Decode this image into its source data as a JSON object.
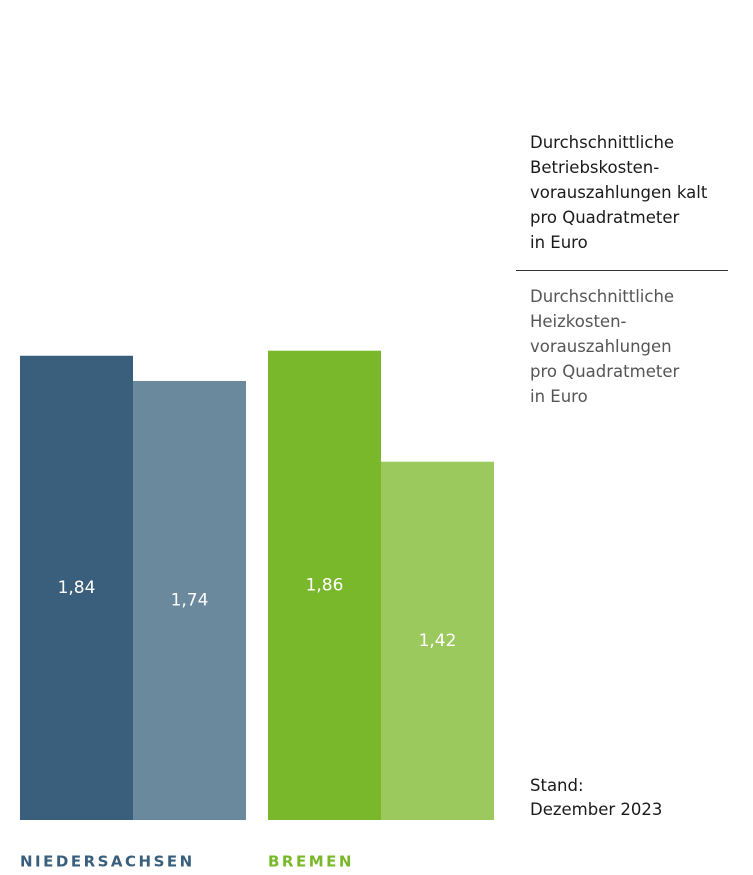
{
  "chart_data": {
    "type": "bar",
    "categories": [
      "NIEDERSACHSEN",
      "BREMEN"
    ],
    "series": [
      {
        "name": "Durchschnittliche\nBetriebskosten-\nvorauszahlungen kalt\npro Quadratmeter\nin Euro",
        "colors": [
          "#3a5f7c",
          "#79b82a"
        ],
        "values": [
          1.84,
          1.86
        ],
        "value_labels": [
          "1,84",
          "1,86"
        ]
      },
      {
        "name": "Durchschnittliche\nHeizkosten-\nvorauszahlungen\npro Quadratmeter\nin Euro",
        "colors": [
          "#6a899d",
          "#9bc95e"
        ],
        "values": [
          1.74,
          1.42
        ],
        "value_labels": [
          "1,74",
          "1,42"
        ]
      }
    ],
    "ylim": [
      0,
      3.25
    ],
    "note": "Stand:\nDezember 2023"
  }
}
